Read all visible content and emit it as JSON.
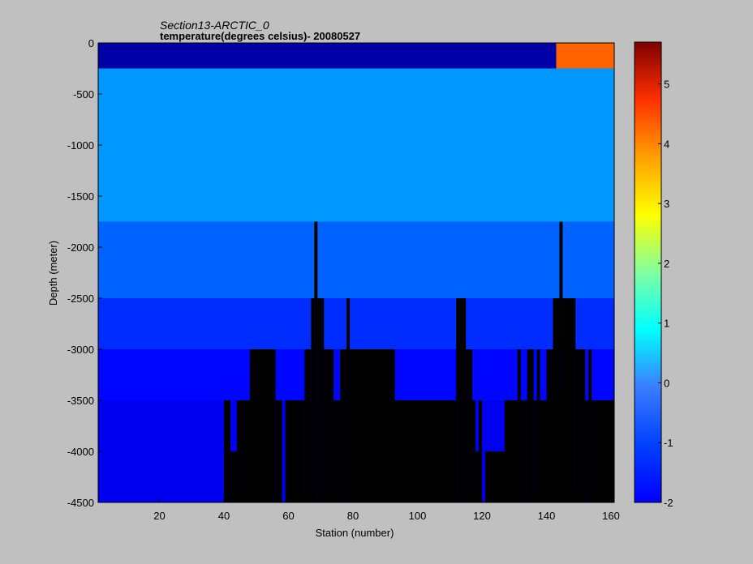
{
  "chart_data": {
    "type": "heatmap",
    "title": "Section13-ARCTIC_0",
    "subtitle": "temperature(degrees  celsius)- 20080527",
    "xlabel": "Station (number)",
    "ylabel": "Depth (meter)",
    "xlim": [
      1,
      161
    ],
    "ylim": [
      -4500,
      0
    ],
    "xticks": [
      20,
      40,
      60,
      80,
      100,
      120,
      140,
      160
    ],
    "yticks": [
      0,
      -500,
      -1000,
      -1500,
      -2000,
      -2500,
      -3000,
      -3500,
      -4000,
      -4500
    ],
    "colorbar": {
      "range": [
        -2,
        5.7
      ],
      "ticks": [
        -2,
        -1,
        0,
        1,
        2,
        3,
        4,
        5
      ],
      "colormap": "jet"
    },
    "no_data_color": "#000000",
    "temperature_bands": [
      {
        "depth_top": 0,
        "depth_bottom": -250,
        "value": -1.7
      },
      {
        "depth_top": -250,
        "depth_bottom": -1750,
        "value": 0.1
      },
      {
        "depth_top": -1750,
        "depth_bottom": -2500,
        "value": -0.3
      },
      {
        "depth_top": -2500,
        "depth_bottom": -3000,
        "value": -0.7
      },
      {
        "depth_top": -3000,
        "depth_bottom": -3500,
        "value": -1.0
      },
      {
        "depth_top": -3500,
        "depth_bottom": -4500,
        "value": -1.15
      }
    ],
    "warm_surface_region": {
      "x_start": 143,
      "x_end": 161,
      "depth_bottom": -250,
      "value": 4.0
    },
    "bathymetry": [
      {
        "x_start": 40,
        "x_end": 42,
        "depth": -3500
      },
      {
        "x_start": 42,
        "x_end": 44,
        "depth": -4000
      },
      {
        "x_start": 44,
        "x_end": 48,
        "depth": -3500
      },
      {
        "x_start": 48,
        "x_end": 56,
        "depth": -3000
      },
      {
        "x_start": 56,
        "x_end": 58,
        "depth": -3500
      },
      {
        "x_start": 59,
        "x_end": 61,
        "depth": -3500
      },
      {
        "x_start": 61,
        "x_end": 65,
        "depth": -3500
      },
      {
        "x_start": 65,
        "x_end": 67,
        "depth": -3000
      },
      {
        "x_start": 67,
        "x_end": 68,
        "depth": -2500
      },
      {
        "x_start": 68,
        "x_end": 69,
        "depth": -1750
      },
      {
        "x_start": 69,
        "x_end": 71,
        "depth": -2500
      },
      {
        "x_start": 71,
        "x_end": 74,
        "depth": -3000
      },
      {
        "x_start": 74,
        "x_end": 76,
        "depth": -3500
      },
      {
        "x_start": 76,
        "x_end": 78,
        "depth": -3000
      },
      {
        "x_start": 78,
        "x_end": 79,
        "depth": -2500
      },
      {
        "x_start": 79,
        "x_end": 93,
        "depth": -3000
      },
      {
        "x_start": 93,
        "x_end": 112,
        "depth": -3500
      },
      {
        "x_start": 112,
        "x_end": 115,
        "depth": -2500
      },
      {
        "x_start": 115,
        "x_end": 117,
        "depth": -3000
      },
      {
        "x_start": 117,
        "x_end": 118,
        "depth": -3500
      },
      {
        "x_start": 118,
        "x_end": 119,
        "depth": -4000
      },
      {
        "x_start": 119,
        "x_end": 120,
        "depth": -3500
      },
      {
        "x_start": 121,
        "x_end": 127,
        "depth": -4000
      },
      {
        "x_start": 127,
        "x_end": 131,
        "depth": -3500
      },
      {
        "x_start": 131,
        "x_end": 132,
        "depth": -3000
      },
      {
        "x_start": 132,
        "x_end": 134,
        "depth": -3500
      },
      {
        "x_start": 134,
        "x_end": 136,
        "depth": -3000
      },
      {
        "x_start": 136,
        "x_end": 137,
        "depth": -3500
      },
      {
        "x_start": 137,
        "x_end": 138,
        "depth": -3000
      },
      {
        "x_start": 138,
        "x_end": 140,
        "depth": -3500
      },
      {
        "x_start": 140,
        "x_end": 142,
        "depth": -3000
      },
      {
        "x_start": 142,
        "x_end": 144,
        "depth": -2500
      },
      {
        "x_start": 144,
        "x_end": 145,
        "depth": -1750
      },
      {
        "x_start": 145,
        "x_end": 149,
        "depth": -2500
      },
      {
        "x_start": 149,
        "x_end": 152,
        "depth": -3000
      },
      {
        "x_start": 152,
        "x_end": 153,
        "depth": -3500
      },
      {
        "x_start": 153,
        "x_end": 154,
        "depth": -3000
      },
      {
        "x_start": 154,
        "x_end": 161,
        "depth": -3500
      }
    ]
  }
}
